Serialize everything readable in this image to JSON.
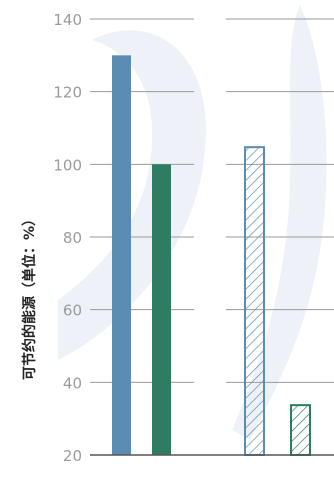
{
  "chart_data": {
    "type": "bar",
    "title": "",
    "xlabel": "",
    "ylabel": "可节约的能源（单位：%）",
    "ylim": [
      20,
      140
    ],
    "yticks": [
      20,
      40,
      60,
      80,
      100,
      120,
      140
    ],
    "grid": true,
    "groups": [
      {
        "bars": [
          {
            "value": 130,
            "color": "#5b8db2",
            "pattern": "solid"
          },
          {
            "value": 100,
            "color": "#2e7d62",
            "pattern": "solid"
          }
        ]
      },
      {
        "bars": [
          {
            "value": 105,
            "color": "#5b8db2",
            "pattern": "hatched"
          },
          {
            "value": 34,
            "color": "#2e7d62",
            "pattern": "hatched"
          }
        ]
      }
    ]
  },
  "colors": {
    "background_watermark": "#eef2f8",
    "grid": "#9a9a9a",
    "tick_text": "#9b9b9b"
  }
}
